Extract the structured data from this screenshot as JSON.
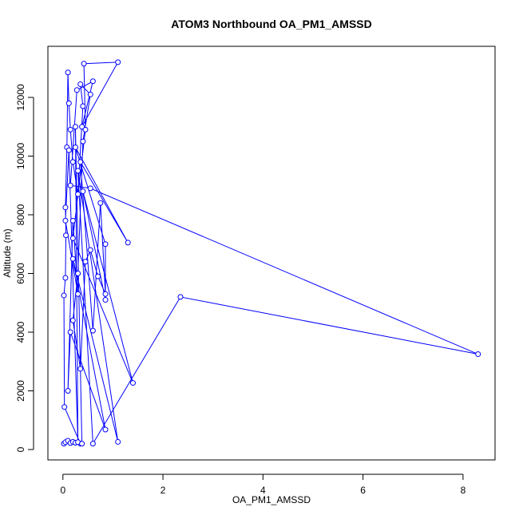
{
  "chart_data": {
    "type": "line",
    "title": "ATOM3 Northbound OA_PM1_AMSSD",
    "xlabel": "OA_PM1_AMSSD",
    "ylabel": "Altitude (m)",
    "color": "#0000ff",
    "x": [
      0.02,
      0.05,
      0.1,
      0.15,
      0.2,
      0.25,
      0.35,
      0.03,
      0.02,
      0.05,
      0.06,
      0.05,
      0.08,
      0.1,
      0.12,
      0.15,
      0.2,
      0.3,
      0.4,
      0.35,
      0.55,
      0.4,
      0.3,
      0.2,
      0.35,
      0.45,
      0.55,
      0.7,
      0.85,
      0.75,
      0.6,
      0.35,
      1.3,
      0.25,
      0.85,
      0.85,
      0.4,
      1.4,
      0.2,
      0.45,
      0.42,
      1.1,
      0.38,
      0.6,
      0.28,
      0.15,
      0.55,
      8.3,
      2.35,
      0.6,
      0.3,
      1.1,
      0.2,
      0.85,
      0.15,
      0.1,
      0.2,
      0.3,
      0.05,
      0.12,
      0.3,
      0.25,
      0.38
    ],
    "values": [
      200,
      250,
      300,
      220,
      260,
      230,
      200,
      1450,
      5250,
      5850,
      7300,
      8250,
      10300,
      12850,
      11800,
      10900,
      9800,
      8700,
      11700,
      12450,
      12100,
      10500,
      6000,
      4400,
      2750,
      6400,
      6800,
      5900,
      5300,
      8400,
      4050,
      9800,
      7050,
      10300,
      7000,
      5100,
      8800,
      2270,
      7200,
      10900,
      13150,
      13200,
      11000,
      12550,
      12250,
      9000,
      8900,
      3250,
      5200,
      200,
      9500,
      260,
      6500,
      680,
      4000,
      2000,
      7800,
      5300,
      7800,
      10200,
      250,
      11000,
      200
    ],
    "xlim": [
      -0.3,
      8.64
    ],
    "ylim": [
      -354,
      13741
    ],
    "xticks": [
      0,
      2,
      4,
      6,
      8
    ],
    "yticks": [
      0,
      2000,
      4000,
      6000,
      8000,
      10000,
      12000
    ]
  }
}
